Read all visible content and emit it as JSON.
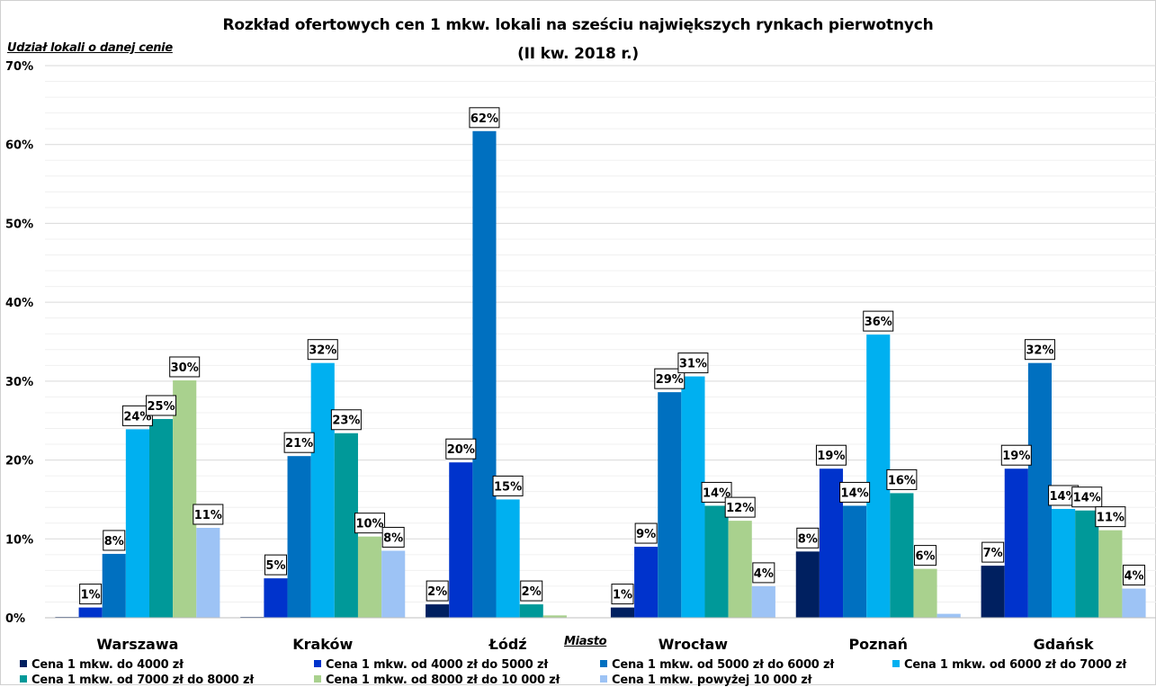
{
  "chart_data": {
    "type": "bar",
    "title": "Rozkład ofertowych cen 1 mkw. lokali na sześciu największych rynkach pierwotnych",
    "subtitle": "(II kw. 2018 r.)",
    "ylabel": "Udział lokali o danej cenie",
    "xlabel": "Miasto",
    "ylim": [
      0,
      70
    ],
    "yticks": [
      "0%",
      "10%",
      "20%",
      "30%",
      "40%",
      "50%",
      "60%",
      "70%"
    ],
    "grid": true,
    "legend_position": "bottom",
    "categories": [
      "Warszawa",
      "Kraków",
      "Łódź",
      "Wrocław",
      "Poznań",
      "Gdańsk"
    ],
    "series": [
      {
        "name": "Cena 1 mkw. do 4000 zł",
        "color": "#002060",
        "values": [
          0.1,
          0.1,
          1.7,
          1.3,
          8.4,
          6.6
        ],
        "labels": [
          "",
          "",
          "2%",
          "1%",
          "8%",
          "7%"
        ]
      },
      {
        "name": "Cena 1 mkw. od 4000 zł do 5000 zł",
        "color": "#0033cc",
        "values": [
          1.3,
          5.0,
          19.7,
          9.0,
          18.9,
          18.9
        ],
        "labels": [
          "1%",
          "5%",
          "20%",
          "9%",
          "19%",
          "19%"
        ]
      },
      {
        "name": "Cena 1 mkw. od 5000 zł do 6000 zł",
        "color": "#0070c0",
        "values": [
          8.1,
          20.5,
          61.7,
          28.6,
          14.2,
          32.3
        ],
        "labels": [
          "8%",
          "21%",
          "62%",
          "29%",
          "14%",
          "32%"
        ]
      },
      {
        "name": "Cena 1 mkw. od 6000 zł do 7000 zł",
        "color": "#00b0f0",
        "values": [
          23.9,
          32.3,
          15.0,
          30.6,
          35.9,
          13.8
        ],
        "labels": [
          "24%",
          "32%",
          "15%",
          "31%",
          "36%",
          "14%"
        ]
      },
      {
        "name": "Cena 1 mkw. od 7000 zł do 8000 zł",
        "color": "#009999",
        "values": [
          25.2,
          23.4,
          1.7,
          14.2,
          15.8,
          13.6
        ],
        "labels": [
          "25%",
          "23%",
          "2%",
          "14%",
          "16%",
          "14%"
        ]
      },
      {
        "name": "Cena 1 mkw. od 8000 zł do 10 000 zł",
        "color": "#a9d18e",
        "values": [
          30.1,
          10.3,
          0.3,
          12.3,
          6.2,
          11.1
        ],
        "labels": [
          "30%",
          "10%",
          "",
          "12%",
          "6%",
          "11%"
        ]
      },
      {
        "name": "Cena 1 mkw. powyżej 10 000 zł",
        "color": "#9dc3f5",
        "values": [
          11.4,
          8.5,
          0.0,
          4.0,
          0.5,
          3.7
        ],
        "labels": [
          "11%",
          "8%",
          "",
          "4%",
          "",
          "4%"
        ]
      }
    ]
  }
}
